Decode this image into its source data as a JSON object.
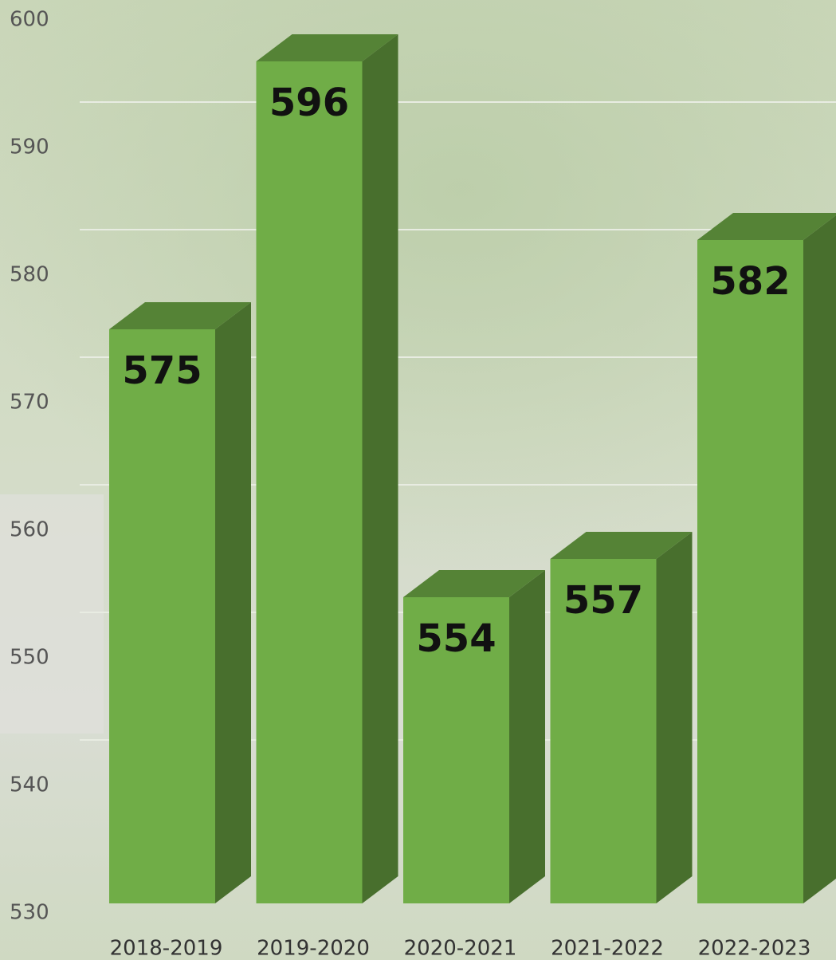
{
  "chart_data": {
    "type": "bar3d",
    "categories": [
      "2018-2019",
      "2019-2020",
      "2020-2021",
      "2021-2022",
      "2022-2023"
    ],
    "values": [
      575,
      596,
      554,
      557,
      582
    ],
    "color": "#70ad47",
    "ylim": [
      530,
      600
    ],
    "yticks": [
      530,
      540,
      550,
      560,
      570,
      580,
      590,
      600
    ],
    "grid": true
  }
}
